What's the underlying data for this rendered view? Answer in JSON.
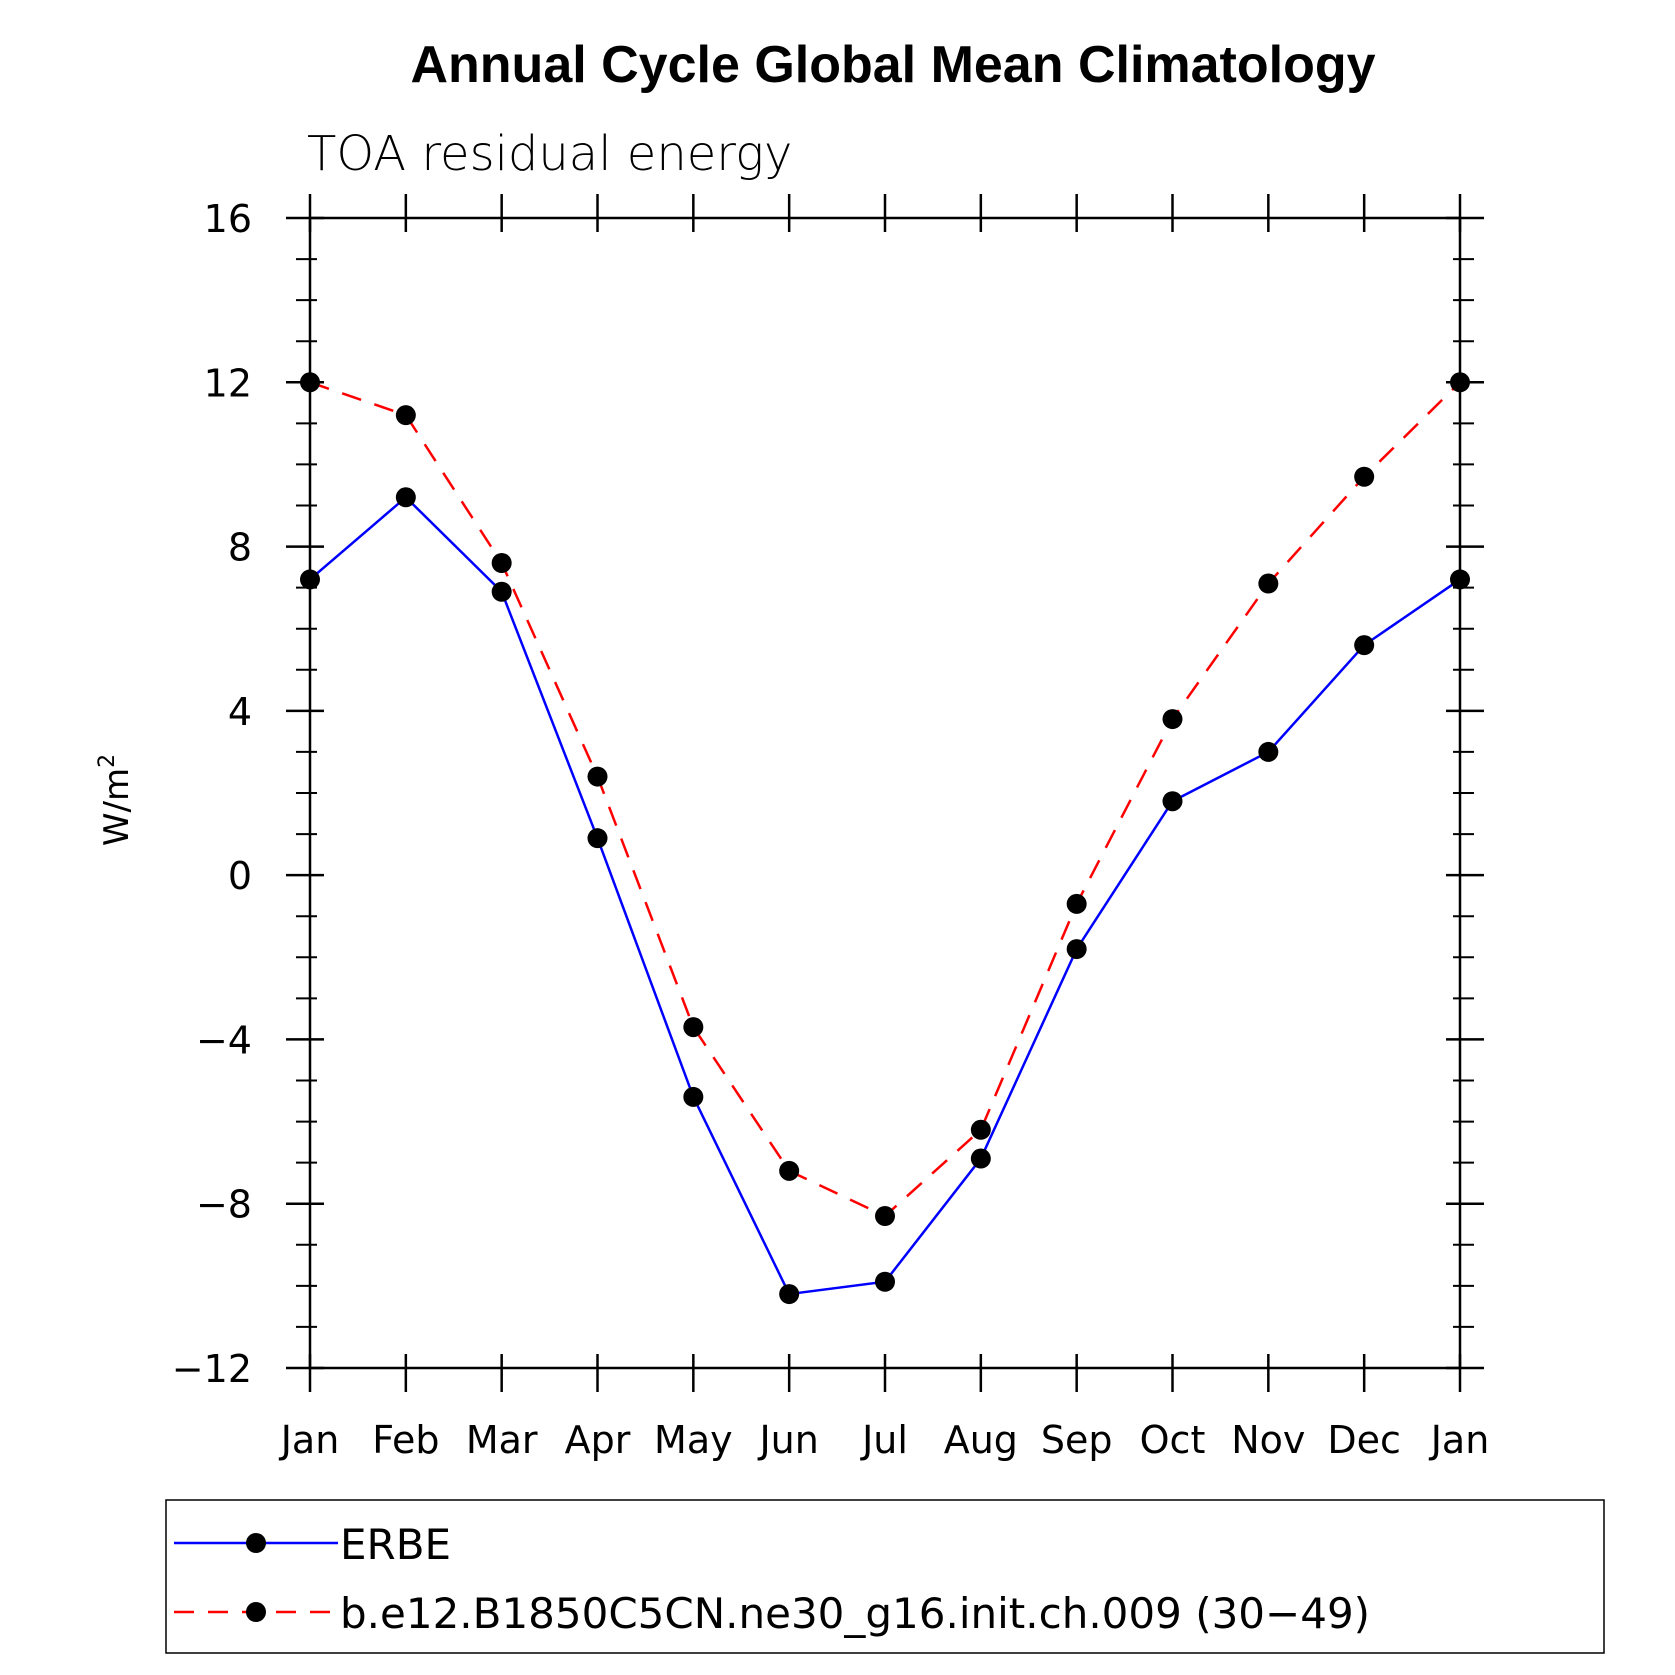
{
  "chart_data": {
    "type": "line",
    "title": "Annual Cycle Global Mean Climatology",
    "subtitle": "TOA residual energy",
    "ylabel": "W/m",
    "ylabel_superscript": "2",
    "xlabel": "",
    "categories": [
      "Jan",
      "Feb",
      "Mar",
      "Apr",
      "May",
      "Jun",
      "Jul",
      "Aug",
      "Sep",
      "Oct",
      "Nov",
      "Dec",
      "Jan"
    ],
    "ylim": [
      -12,
      16
    ],
    "yticks": [
      16,
      12,
      8,
      4,
      0,
      -4,
      -8,
      -12
    ],
    "ytick_labels": [
      "16",
      "12",
      "8",
      "4",
      "0",
      "−4",
      "−8",
      "−12"
    ],
    "series": [
      {
        "name": "ERBE",
        "color": "#0000ff",
        "dash": "solid",
        "marker": "circle",
        "values": [
          7.2,
          9.2,
          6.9,
          0.9,
          -5.4,
          -10.2,
          -9.9,
          -6.9,
          -1.8,
          1.8,
          3.0,
          5.6,
          7.2
        ]
      },
      {
        "name": "b.e12.B1850C5CN.ne30_g16.init.ch.009 (30−49)",
        "color": "#ff0000",
        "dash": "dashed",
        "marker": "circle",
        "values": [
          12.0,
          11.2,
          7.6,
          2.4,
          -3.7,
          -7.2,
          -8.3,
          -6.2,
          -0.7,
          3.8,
          7.1,
          9.7,
          12.0
        ]
      }
    ],
    "grid": false,
    "legend_position": "bottom"
  }
}
